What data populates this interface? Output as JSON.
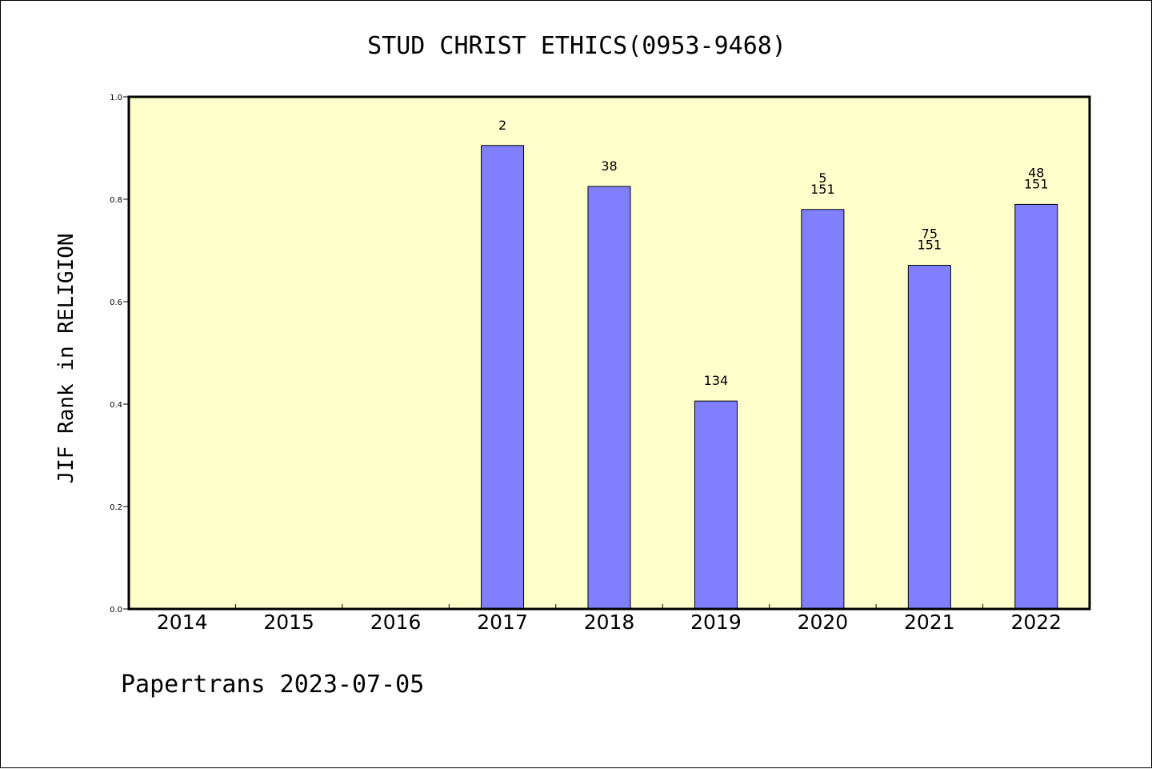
{
  "chart_data": {
    "type": "bar",
    "title": "STUD CHRIST ETHICS(0953-9468)",
    "ylabel": "JIF Rank in RELIGION",
    "xlabel": "",
    "categories": [
      "2014",
      "2015",
      "2016",
      "2017",
      "2018",
      "2019",
      "2020",
      "2021",
      "2022"
    ],
    "values": [
      null,
      null,
      null,
      0.905,
      0.825,
      0.406,
      0.78,
      0.671,
      0.79
    ],
    "bar_labels": [
      [],
      [],
      [],
      [
        "2"
      ],
      [
        "38"
      ],
      [
        "134"
      ],
      [
        "5",
        "151"
      ],
      [
        "75",
        "151"
      ],
      [
        "48",
        "151"
      ]
    ],
    "ylim": [
      0,
      1.0
    ],
    "yticks": [
      "0.0",
      "0.2",
      "0.4",
      "0.6",
      "0.8",
      "1.0"
    ],
    "ytick_values": [
      0,
      0.2,
      0.4,
      0.6,
      0.8,
      1.0
    ],
    "grid": false,
    "colors": {
      "plot_background": "#ffffcc",
      "bar_fill": "#8080ff",
      "bar_stroke": "#000000"
    }
  },
  "footer": "Papertrans 2023-07-05"
}
